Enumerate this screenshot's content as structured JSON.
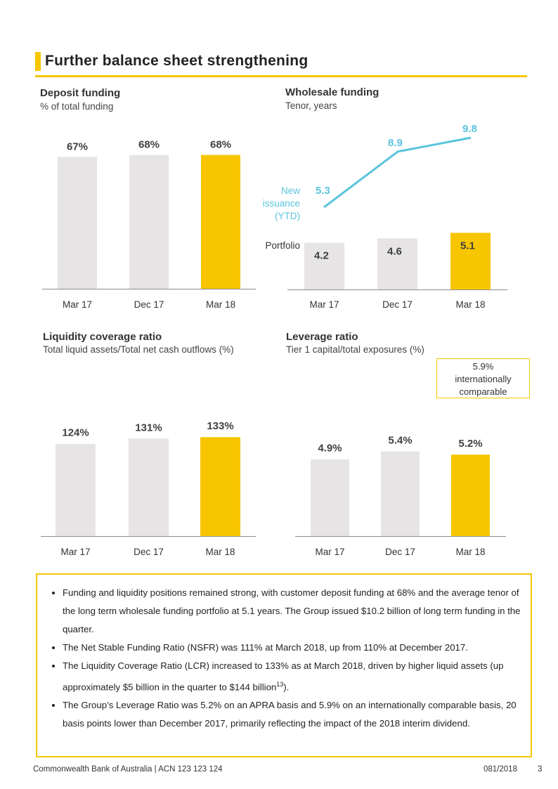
{
  "page_title": "Further balance sheet strengthening",
  "colors": {
    "accent": "#f7c600",
    "bar": "#e6e4e4",
    "line": "#5bc4dc",
    "axis": "#8c8c8c"
  },
  "chart_data": [
    {
      "type": "bar",
      "title": "Deposit funding",
      "subtitle": "% of total funding",
      "categories": [
        "Mar 17",
        "Dec 17",
        "Mar 18"
      ],
      "values": [
        67,
        68,
        68
      ],
      "value_labels": [
        "67%",
        "68%",
        "68%"
      ],
      "highlight_index": 2
    },
    {
      "type": "bar",
      "title": "Wholesale funding",
      "subtitle": "Tenor, years",
      "categories": [
        "Mar 17",
        "Dec 17",
        "Mar 18"
      ],
      "series": [
        {
          "name": "Portfolio",
          "values": [
            4.2,
            4.6,
            5.1
          ]
        },
        {
          "name": "New issuance (YTD)",
          "values": [
            5.3,
            8.9,
            9.8
          ]
        }
      ],
      "highlight_index": 2
    },
    {
      "type": "bar",
      "title": "Liquidity coverage ratio",
      "subtitle": "Total liquid assets/Total net cash outflows (%)",
      "categories": [
        "Mar 17",
        "Dec 17",
        "Mar 18"
      ],
      "values": [
        124,
        131,
        133
      ],
      "value_labels": [
        "124%",
        "131%",
        "133%"
      ],
      "highlight_index": 2
    },
    {
      "type": "bar",
      "title": "Leverage ratio",
      "subtitle": "Tier 1 capital/total exposures (%)",
      "categories": [
        "Mar 17",
        "Dec 17",
        "Mar 18"
      ],
      "values": [
        4.9,
        5.4,
        5.2
      ],
      "value_labels": [
        "4.9%",
        "5.4%",
        "5.2%"
      ],
      "highlight_index": 2,
      "annotation": "5.9% internationally comparable"
    }
  ],
  "series_tags": {
    "portfolio": "Portfolio",
    "new_issuance_lines": [
      "New",
      "issuance",
      "(YTD)"
    ]
  },
  "callout_lines": [
    "5.9%",
    "internationally",
    "comparable"
  ],
  "notes": [
    "Funding and liquidity positions remained strong, with customer deposit funding at 68% and the average tenor of the long term wholesale funding portfolio at 5.1 years. The Group issued $10.2 billion of long term funding in the quarter.",
    "The Net Stable Funding Ratio (NSFR) was 111% at March 2018, up from 110% at December 2017.",
    "The Liquidity Coverage Ratio (LCR) increased to 133% as at March 2018, driven by higher liquid assets (up approximately $5 billion in the quarter to $144 billion13).",
    "The Group’s Leverage Ratio was 5.2% on an APRA basis and 5.9% on an internationally comparable basis, 20 basis points lower than December 2017, primarily reflecting the impact of the 2018 interim dividend."
  ],
  "footer": {
    "left": "Commonwealth Bank of Australia | ACN 123 123 124",
    "code": "081/2018",
    "page": "3"
  }
}
